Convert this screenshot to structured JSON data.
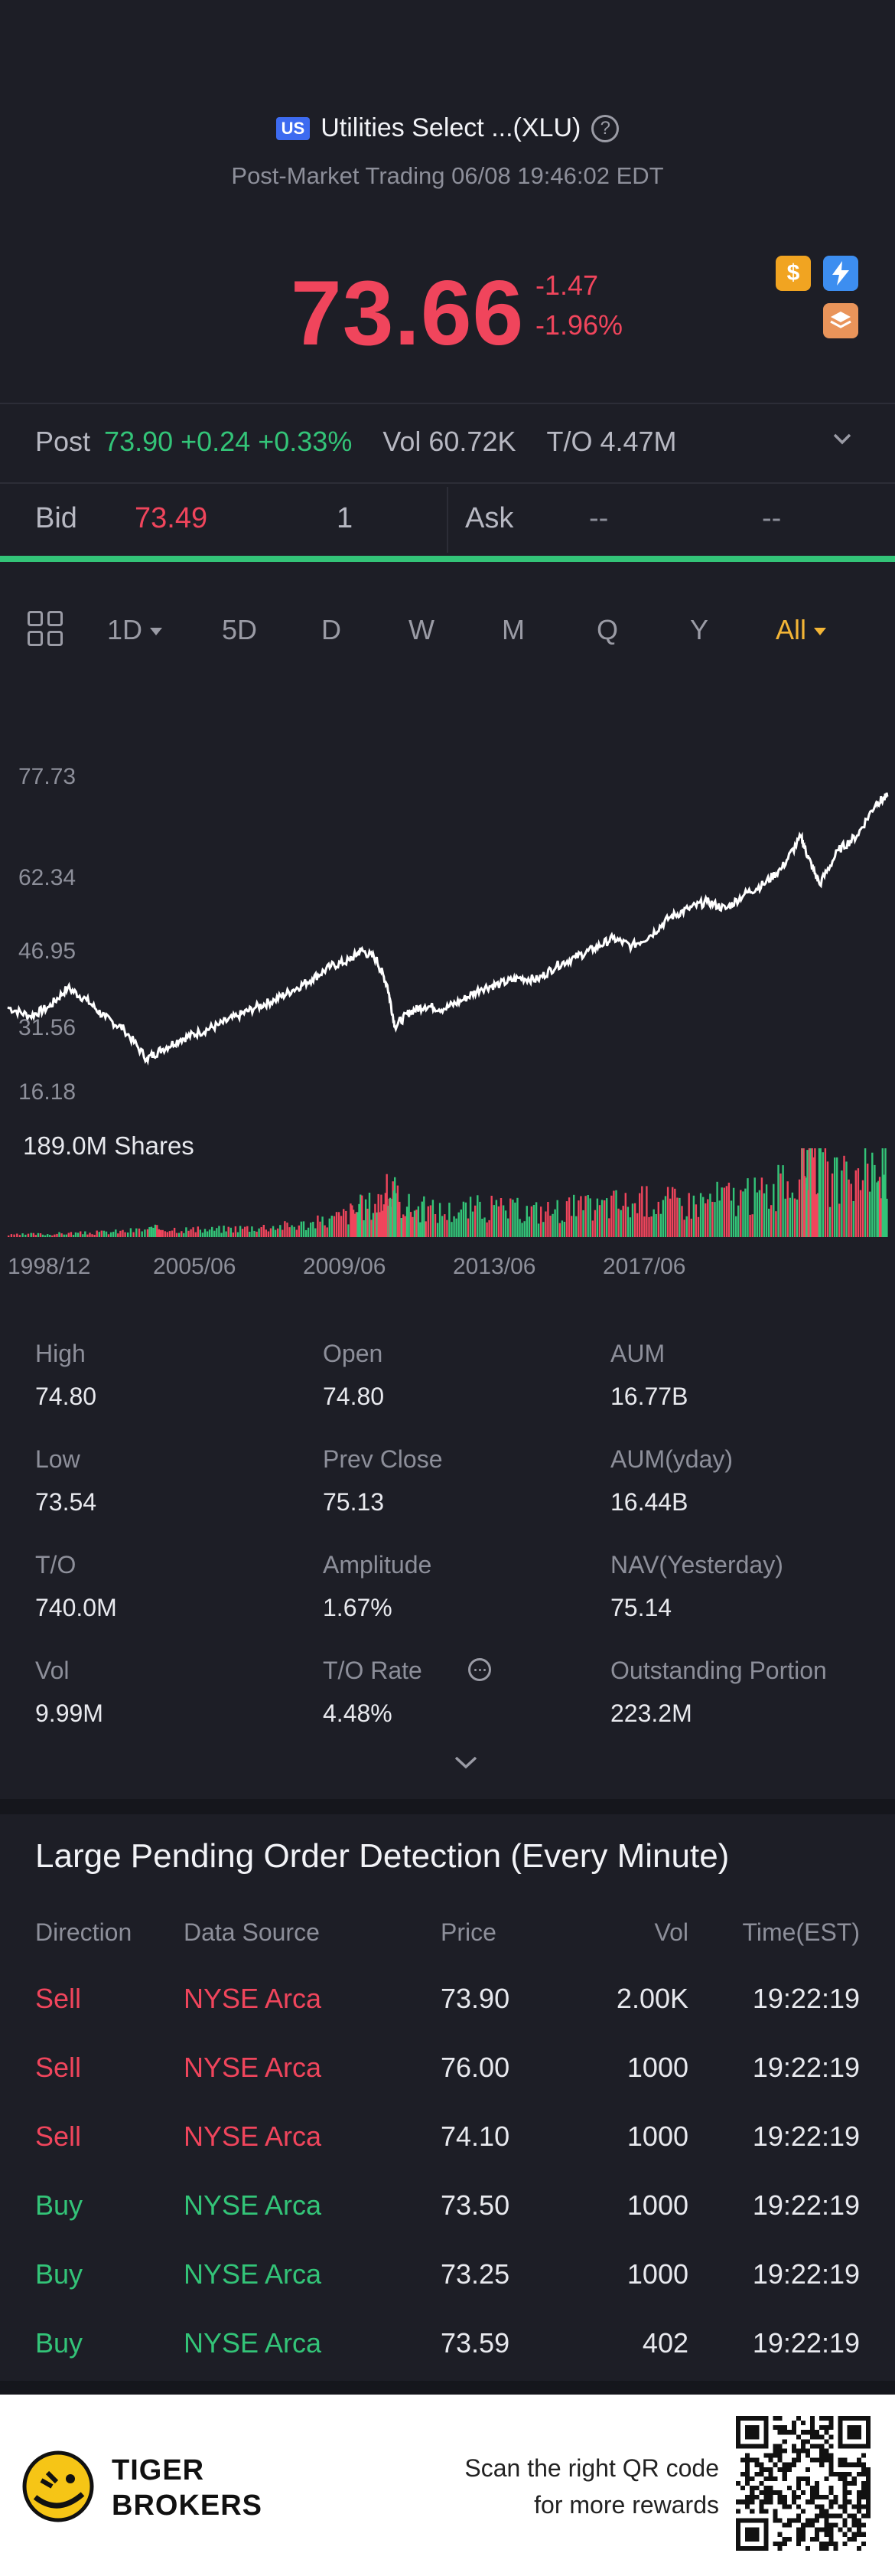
{
  "header": {
    "market_badge": "US",
    "title": "Utilities Select ...(XLU)",
    "subtitle": "Post-Market Trading 06/08 19:46:02 EDT"
  },
  "quote": {
    "price": "73.66",
    "change": "-1.47",
    "change_pct": "-1.96%"
  },
  "post": {
    "label": "Post",
    "values": "73.90 +0.24 +0.33%",
    "vol": "Vol 60.72K",
    "turnover": "T/O 4.47M"
  },
  "book": {
    "bid_label": "Bid",
    "bid_price": "73.49",
    "bid_qty": "1",
    "ask_label": "Ask",
    "ask_price": "--",
    "ask_qty": "--"
  },
  "tabs": [
    "1D",
    "5D",
    "D",
    "W",
    "M",
    "Q",
    "Y",
    "All"
  ],
  "active_tab": "All",
  "chart_data": {
    "type": "line",
    "y_ticks": [
      "77.73",
      "62.34",
      "46.95",
      "31.56",
      "16.18"
    ],
    "x_ticks": [
      "1998/12",
      "2005/06",
      "2009/06",
      "2013/06",
      "2017/06"
    ],
    "volume_label": "189.0M Shares",
    "ylim": [
      16.18,
      77.73
    ],
    "x": [
      1998.9,
      1999.5,
      2000.0,
      2000.5,
      2001.0,
      2001.5,
      2002.0,
      2002.6,
      2003.0,
      2003.5,
      2004.0,
      2004.5,
      2005.0,
      2005.5,
      2006.0,
      2006.5,
      2007.0,
      2007.5,
      2008.0,
      2008.3,
      2008.7,
      2009.0,
      2009.2,
      2009.6,
      2010.0,
      2010.5,
      2011.0,
      2011.5,
      2012.0,
      2012.5,
      2013.0,
      2013.5,
      2014.0,
      2014.5,
      2015.0,
      2015.5,
      2016.0,
      2016.5,
      2017.0,
      2017.5,
      2018.0,
      2018.5,
      2019.0,
      2019.5,
      2020.0,
      2020.2,
      2020.5,
      2021.0,
      2021.5,
      2022.0,
      2022.3
    ],
    "values": [
      31.5,
      29.7,
      31.6,
      35.5,
      33.0,
      29.4,
      27.0,
      21.0,
      22.9,
      25.0,
      26.4,
      27.9,
      29.7,
      31.5,
      33.0,
      35.1,
      37.3,
      39.9,
      41.1,
      43.2,
      41.4,
      36.0,
      27.6,
      30.6,
      31.8,
      31.2,
      33.0,
      35.4,
      36.3,
      37.5,
      37.2,
      40.0,
      41.7,
      43.5,
      45.6,
      44.0,
      46.2,
      49.8,
      51.6,
      53.1,
      51.6,
      54.6,
      56.6,
      60.0,
      66.3,
      62.0,
      56.6,
      63.6,
      66.6,
      73.2,
      74.5
    ],
    "volume": [
      2,
      3,
      3,
      4,
      4,
      5,
      6,
      8,
      9,
      8,
      7,
      8,
      9,
      10,
      11,
      12,
      14,
      18,
      25,
      30,
      35,
      45,
      40,
      30,
      28,
      26,
      28,
      30,
      28,
      27,
      26,
      28,
      30,
      29,
      35,
      33,
      38,
      36,
      34,
      38,
      42,
      40,
      45,
      50,
      70,
      90,
      65,
      55,
      60,
      70,
      75
    ]
  },
  "stats": [
    {
      "label": "High",
      "value": "74.80"
    },
    {
      "label": "Open",
      "value": "74.80"
    },
    {
      "label": "AUM",
      "value": "16.77B"
    },
    {
      "label": "Low",
      "value": "73.54"
    },
    {
      "label": "Prev Close",
      "value": "75.13"
    },
    {
      "label": "AUM(yday)",
      "value": "16.44B"
    },
    {
      "label": "T/O",
      "value": "740.0M"
    },
    {
      "label": "Amplitude",
      "value": "1.67%"
    },
    {
      "label": "NAV(Yesterday)",
      "value": "75.14"
    },
    {
      "label": "Vol",
      "value": "9.99M"
    },
    {
      "label": "T/O Rate",
      "value": "4.48%"
    },
    {
      "label": "Outstanding Portion",
      "value": "223.2M"
    }
  ],
  "orders": {
    "title": "Large Pending Order Detection (Every Minute)",
    "headers": [
      "Direction",
      "Data Source",
      "Price",
      "Vol",
      "Time(EST)"
    ],
    "rows": [
      {
        "dir": "Sell",
        "source": "NYSE Arca",
        "price": "73.90",
        "vol": "2.00K",
        "time": "19:22:19"
      },
      {
        "dir": "Sell",
        "source": "NYSE Arca",
        "price": "76.00",
        "vol": "1000",
        "time": "19:22:19"
      },
      {
        "dir": "Sell",
        "source": "NYSE Arca",
        "price": "74.10",
        "vol": "1000",
        "time": "19:22:19"
      },
      {
        "dir": "Buy",
        "source": "NYSE Arca",
        "price": "73.50",
        "vol": "1000",
        "time": "19:22:19"
      },
      {
        "dir": "Buy",
        "source": "NYSE Arca",
        "price": "73.25",
        "vol": "1000",
        "time": "19:22:19"
      },
      {
        "dir": "Buy",
        "source": "NYSE Arca",
        "price": "73.59",
        "vol": "402",
        "time": "19:22:19"
      }
    ]
  },
  "footer": {
    "brand_line1": "TIGER",
    "brand_line2": "BROKERS",
    "scan_line1": "Scan the right QR code",
    "scan_line2": "for more rewards"
  },
  "colors": {
    "down": "#f0455c",
    "up": "#33c478",
    "active_tab": "#f3b536",
    "background": "#1d1e26"
  }
}
